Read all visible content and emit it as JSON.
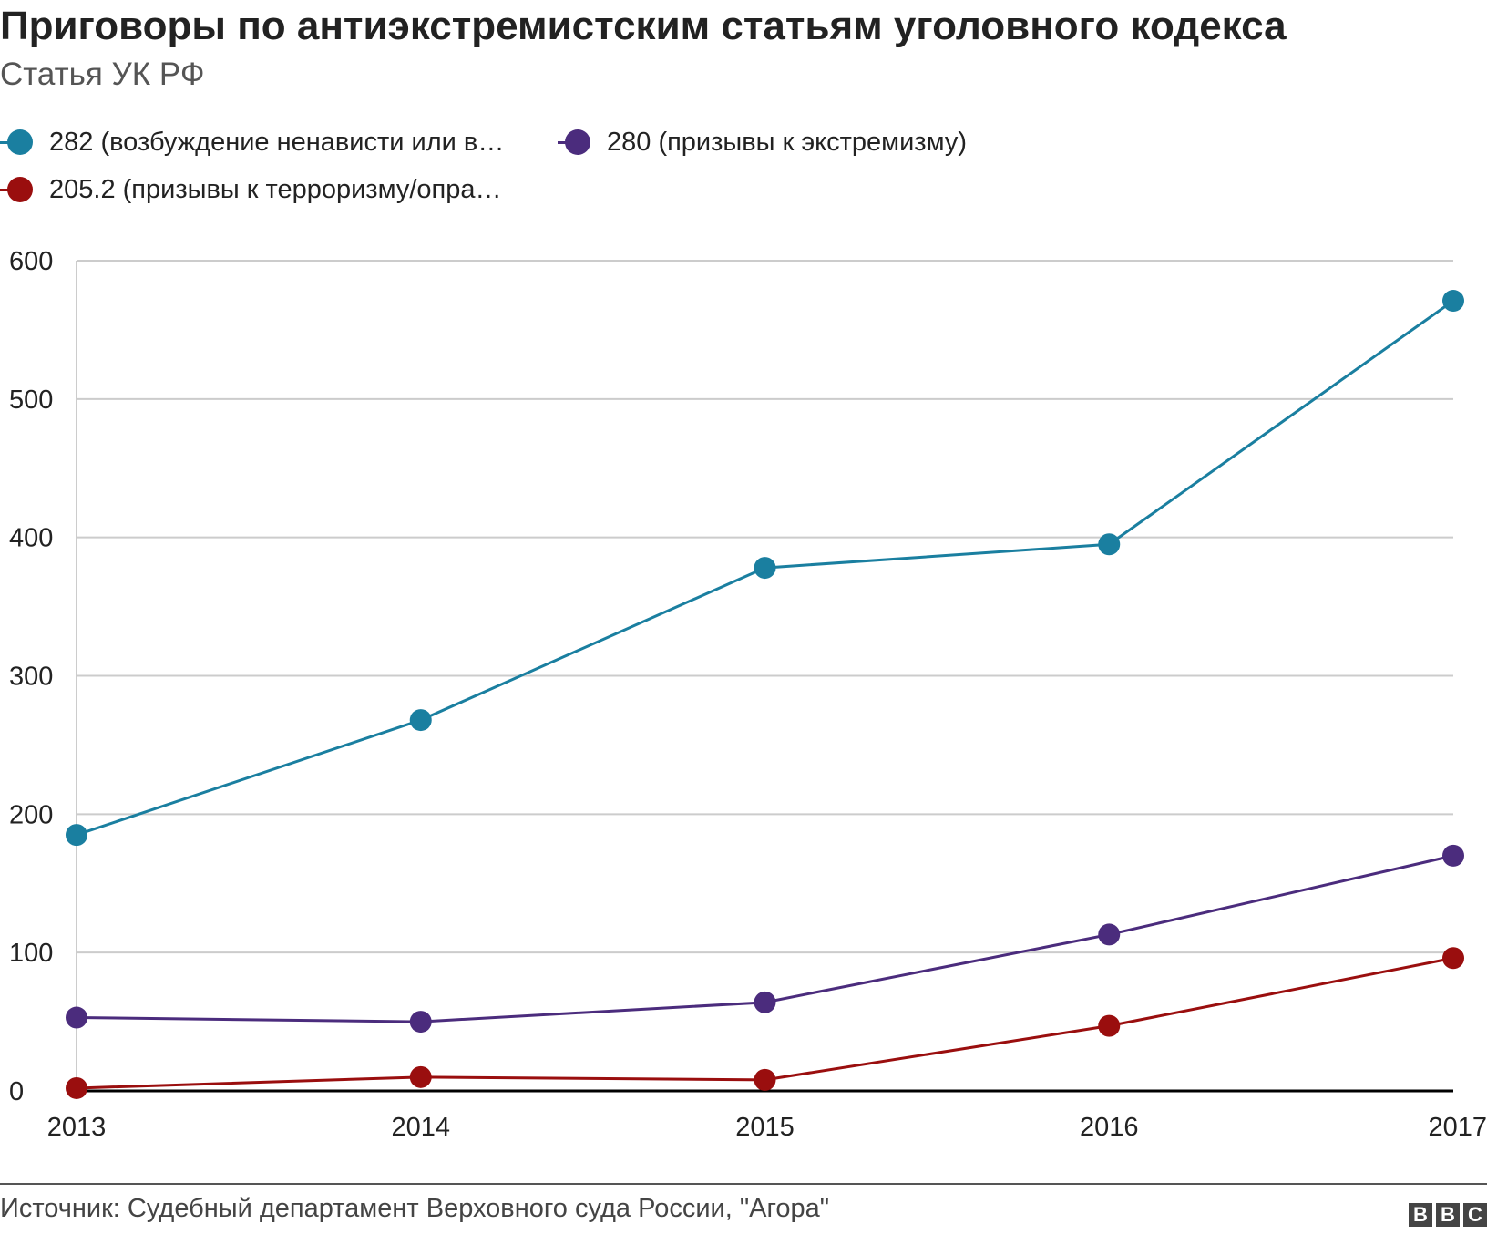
{
  "chart_data": {
    "type": "line",
    "title": "Приговоры по антиэкстремистским статьям уголовного кодекса",
    "subtitle": "Статья УК РФ",
    "xlabel": "",
    "ylabel": "",
    "categories": [
      "2013",
      "2014",
      "2015",
      "2016",
      "2017"
    ],
    "yticks": [
      "0",
      "100",
      "200",
      "300",
      "400",
      "500",
      "600"
    ],
    "ylim": [
      0,
      600
    ],
    "grid": true,
    "legend_position": "top-left",
    "series": [
      {
        "name": "282 (возбуждение ненависти или в…",
        "color": "#1a7fa0",
        "values": [
          185,
          268,
          378,
          395,
          571
        ]
      },
      {
        "name": "280 (призывы к экстремизму)",
        "color": "#4b2c7d",
        "values": [
          53,
          50,
          64,
          113,
          170
        ]
      },
      {
        "name": "205.2 (призывы к терроризму/опра…",
        "color": "#9a0e0e",
        "values": [
          2,
          10,
          8,
          47,
          96
        ]
      }
    ]
  },
  "footer": {
    "source": "Источник: Судебный департамент Верховного суда России, \"Агора\"",
    "logo": [
      "B",
      "B",
      "C"
    ]
  }
}
